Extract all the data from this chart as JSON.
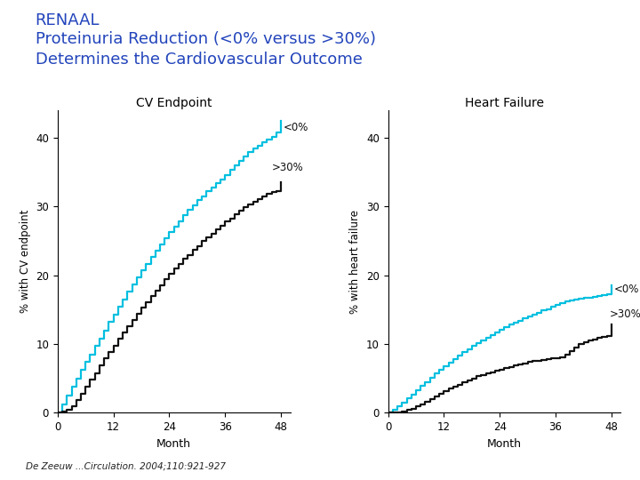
{
  "title_line1": "RENAAL",
  "title_line2": "Proteinuria Reduction (<0% versus >30%)",
  "title_line3": "Determines the Cardiovascular Outcome",
  "title_color": "#2244BB",
  "subplot1_title": "CV Endpoint",
  "subplot2_title": "Heart Failure",
  "ylabel1": "% with CV endpoint",
  "ylabel2": "% with heart failure",
  "xlabel": "Month",
  "citation": "De Zeeuw ...Circulation. 2004;110:921-927",
  "cyan_color": "#00BFDF",
  "black_color": "#111111",
  "background_color": "#FFFFFF",
  "cv_lt0_x": [
    0,
    1,
    2,
    3,
    4,
    5,
    6,
    7,
    8,
    9,
    10,
    11,
    12,
    13,
    14,
    15,
    16,
    17,
    18,
    19,
    20,
    21,
    22,
    23,
    24,
    25,
    26,
    27,
    28,
    29,
    30,
    31,
    32,
    33,
    34,
    35,
    36,
    37,
    38,
    39,
    40,
    41,
    42,
    43,
    44,
    45,
    46,
    47,
    48
  ],
  "cv_lt0_y": [
    0,
    1.2,
    2.5,
    3.8,
    5.0,
    6.2,
    7.4,
    8.5,
    9.7,
    10.8,
    12.0,
    13.2,
    14.3,
    15.4,
    16.5,
    17.6,
    18.7,
    19.7,
    20.7,
    21.7,
    22.7,
    23.6,
    24.5,
    25.4,
    26.3,
    27.1,
    27.9,
    28.7,
    29.5,
    30.2,
    30.9,
    31.5,
    32.2,
    32.8,
    33.4,
    34.0,
    34.6,
    35.3,
    36.0,
    36.7,
    37.3,
    37.9,
    38.4,
    38.9,
    39.4,
    39.8,
    40.2,
    40.8,
    42.5
  ],
  "cv_gt30_x": [
    0,
    1,
    2,
    3,
    4,
    5,
    6,
    7,
    8,
    9,
    10,
    11,
    12,
    13,
    14,
    15,
    16,
    17,
    18,
    19,
    20,
    21,
    22,
    23,
    24,
    25,
    26,
    27,
    28,
    29,
    30,
    31,
    32,
    33,
    34,
    35,
    36,
    37,
    38,
    39,
    40,
    41,
    42,
    43,
    44,
    45,
    46,
    47,
    48
  ],
  "cv_gt30_y": [
    0,
    0.2,
    0.5,
    1.0,
    1.8,
    2.8,
    3.8,
    4.8,
    5.8,
    6.9,
    7.9,
    8.9,
    9.8,
    10.8,
    11.7,
    12.6,
    13.5,
    14.4,
    15.3,
    16.1,
    17.0,
    17.8,
    18.6,
    19.4,
    20.2,
    21.0,
    21.7,
    22.4,
    23.0,
    23.7,
    24.3,
    25.0,
    25.5,
    26.1,
    26.7,
    27.2,
    27.8,
    28.3,
    28.9,
    29.4,
    29.9,
    30.3,
    30.7,
    31.1,
    31.5,
    31.9,
    32.1,
    32.3,
    33.5
  ],
  "hf_lt0_x": [
    0,
    1,
    2,
    3,
    4,
    5,
    6,
    7,
    8,
    9,
    10,
    11,
    12,
    13,
    14,
    15,
    16,
    17,
    18,
    19,
    20,
    21,
    22,
    23,
    24,
    25,
    26,
    27,
    28,
    29,
    30,
    31,
    32,
    33,
    34,
    35,
    36,
    37,
    38,
    39,
    40,
    41,
    42,
    43,
    44,
    45,
    46,
    47,
    48
  ],
  "hf_lt0_y": [
    0,
    0.4,
    0.9,
    1.5,
    2.1,
    2.7,
    3.3,
    3.9,
    4.5,
    5.1,
    5.7,
    6.2,
    6.8,
    7.3,
    7.8,
    8.3,
    8.8,
    9.2,
    9.7,
    10.1,
    10.5,
    10.9,
    11.3,
    11.7,
    12.1,
    12.5,
    12.8,
    13.1,
    13.4,
    13.7,
    14.0,
    14.3,
    14.6,
    14.9,
    15.1,
    15.4,
    15.7,
    16.0,
    16.2,
    16.4,
    16.5,
    16.6,
    16.7,
    16.8,
    16.9,
    17.0,
    17.1,
    17.3,
    18.5
  ],
  "hf_gt30_x": [
    0,
    1,
    2,
    3,
    4,
    5,
    6,
    7,
    8,
    9,
    10,
    11,
    12,
    13,
    14,
    15,
    16,
    17,
    18,
    19,
    20,
    21,
    22,
    23,
    24,
    25,
    26,
    27,
    28,
    29,
    30,
    31,
    32,
    33,
    34,
    35,
    36,
    37,
    38,
    39,
    40,
    41,
    42,
    43,
    44,
    45,
    46,
    47,
    48
  ],
  "hf_gt30_y": [
    0,
    0.0,
    0.1,
    0.2,
    0.4,
    0.6,
    0.9,
    1.2,
    1.6,
    2.0,
    2.4,
    2.8,
    3.2,
    3.5,
    3.8,
    4.1,
    4.4,
    4.7,
    5.0,
    5.3,
    5.5,
    5.7,
    5.9,
    6.1,
    6.3,
    6.5,
    6.7,
    6.9,
    7.1,
    7.2,
    7.4,
    7.5,
    7.6,
    7.7,
    7.8,
    7.9,
    8.0,
    8.1,
    8.5,
    9.0,
    9.5,
    10.0,
    10.3,
    10.5,
    10.7,
    10.9,
    11.0,
    11.2,
    12.8
  ],
  "xticks": [
    0,
    12,
    24,
    36,
    48
  ],
  "yticks1": [
    0,
    10,
    20,
    30,
    40
  ],
  "yticks2": [
    0,
    10,
    20,
    30,
    40
  ],
  "ylim1": [
    0,
    44
  ],
  "ylim2": [
    0,
    44
  ],
  "xlim": [
    0,
    50
  ]
}
